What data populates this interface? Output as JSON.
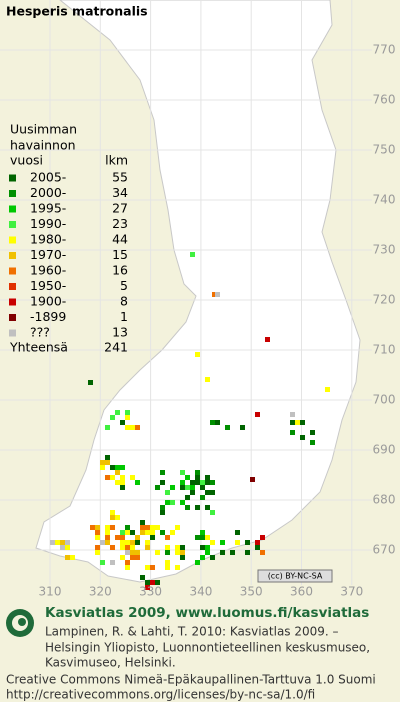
{
  "title": "Hesperis matronalis",
  "legend": {
    "heading": [
      "Uusimman",
      "havainnon"
    ],
    "year_header": "vuosi",
    "count_header": "lkm",
    "rows": [
      {
        "label": "2005-",
        "count": 55,
        "color": "#006400"
      },
      {
        "label": "2000-",
        "count": 34,
        "color": "#009000"
      },
      {
        "label": "1995-",
        "count": 27,
        "color": "#00c800"
      },
      {
        "label": "1990-",
        "count": 23,
        "color": "#40f040"
      },
      {
        "label": "1980-",
        "count": 44,
        "color": "#ffff00"
      },
      {
        "label": "1970-",
        "count": 15,
        "color": "#f0c000"
      },
      {
        "label": "1960-",
        "count": 16,
        "color": "#f07000"
      },
      {
        "label": "1950-",
        "count": 5,
        "color": "#e03000"
      },
      {
        "label": "1900-",
        "count": 8,
        "color": "#c80000"
      },
      {
        "label": "-1899",
        "count": 1,
        "color": "#800000"
      },
      {
        "label": "???",
        "count": 13,
        "color": "#c0c0c0"
      }
    ],
    "total_label": "Yhteensä",
    "total": 241
  },
  "map": {
    "x_labels": [
      310,
      320,
      330,
      340,
      350,
      360,
      370
    ],
    "y_labels": [
      770,
      760,
      750,
      740,
      730,
      720,
      710,
      700,
      690,
      680,
      670
    ]
  },
  "license_badge": "(cc) BY-NC-SA",
  "footer": {
    "site": "Kasviatlas 2009, www.luomus.fi/kasviatlas",
    "citation": [
      "Lampinen, R. & Lahti, T. 2010: Kasviatlas 2009. –",
      "Helsingin Yliopisto, Luonnontieteellinen keskusmuseo,",
      "Kasvimuseo, Helsinki."
    ],
    "license": [
      "Creative Commons Nimeä-Epäkaupallinen-Tarttuva 1.0 Suomi",
      "http://creativecommons.org/licenses/by-nc-sa/1.0/fi"
    ]
  }
}
